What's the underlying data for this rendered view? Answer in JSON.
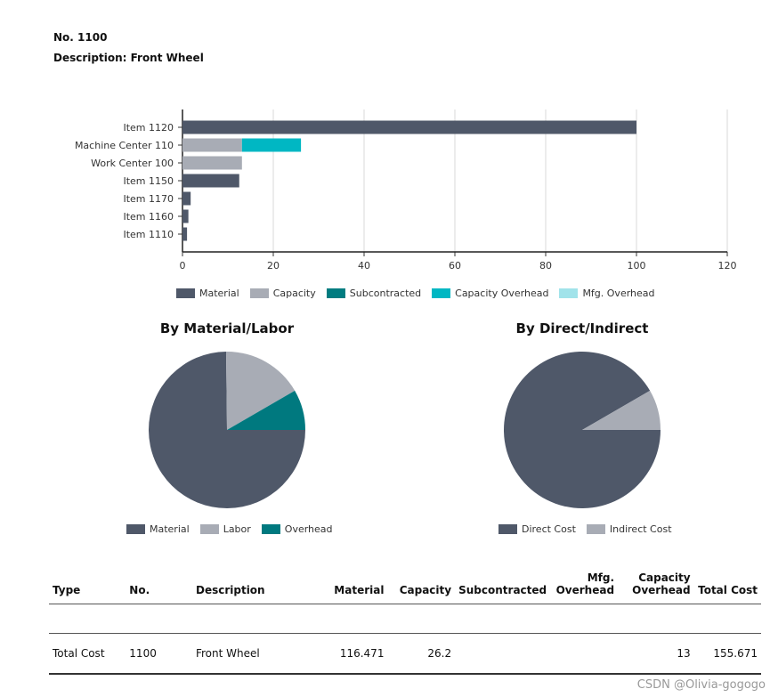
{
  "header": {
    "no_line": "No. 1100",
    "description_line": "Description: Front Wheel"
  },
  "colors": {
    "material": "#4f5869",
    "capacity": "#a8acb5",
    "subcontracted": "#007c80",
    "capacity_overhead": "#00b7c3",
    "mfg_overhead": "#a1e3ea",
    "labor": "#a8acb5",
    "overhead": "#00797f",
    "direct_cost": "#4f5869",
    "indirect_cost": "#a8acb5"
  },
  "chart_data": [
    {
      "type": "bar",
      "orientation": "horizontal",
      "stacked": true,
      "categories": [
        "Item 1120",
        "Machine Center 110",
        "Work Center 100",
        "Item 1150",
        "Item 1170",
        "Item 1160",
        "Item 1110"
      ],
      "series": [
        {
          "name": "Material",
          "values": [
            100,
            0,
            0,
            12.5,
            1.8,
            1.3,
            1.0
          ]
        },
        {
          "name": "Capacity",
          "values": [
            0,
            13.1,
            13.1,
            0,
            0,
            0,
            0
          ]
        },
        {
          "name": "Subcontracted",
          "values": [
            0,
            0,
            0,
            0,
            0,
            0,
            0
          ]
        },
        {
          "name": "Capacity Overhead",
          "values": [
            0,
            13,
            0,
            0,
            0,
            0,
            0
          ]
        },
        {
          "name": "Mfg. Overhead",
          "values": [
            0,
            0,
            0,
            0,
            0,
            0,
            0
          ]
        }
      ],
      "xlim": [
        0,
        120
      ],
      "xticks": [
        "0",
        "20",
        "40",
        "60",
        "80",
        "100",
        "120"
      ],
      "grid": true,
      "legend": "bottom"
    },
    {
      "type": "pie",
      "title": "By Material/Labor",
      "labels": [
        "Material",
        "Labor",
        "Overhead"
      ],
      "values": [
        116.471,
        26.2,
        13
      ],
      "legend": "bottom"
    },
    {
      "type": "pie",
      "title": "By Direct/Indirect",
      "labels": [
        "Direct Cost",
        "Indirect Cost"
      ],
      "values": [
        142.671,
        13
      ],
      "legend": "bottom"
    }
  ],
  "table": {
    "headers": {
      "type": "Type",
      "no": "No.",
      "description": "Description",
      "material": "Material",
      "capacity": "Capacity",
      "subcontracted": "Subcontracted",
      "mfg_overhead": "Mfg. Overhead",
      "capacity_overhead": "Capacity Overhead",
      "total_cost": "Total Cost"
    },
    "total_row": {
      "type": "Total Cost",
      "no": "1100",
      "description": "Front Wheel",
      "material": "116.471",
      "capacity": "26.2",
      "subcontracted": "",
      "mfg_overhead": "",
      "capacity_overhead": "13",
      "total_cost": "155.671"
    }
  },
  "watermark": "CSDN @Olivia-gogogo"
}
